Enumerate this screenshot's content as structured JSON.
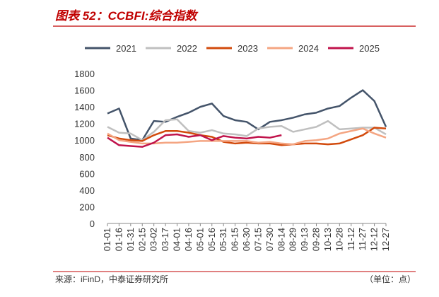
{
  "chart_data": {
    "type": "line",
    "title": "图表 52：CCBFI:综合指数",
    "source": "来源：iFinD，中泰证券研究所",
    "unit": "（单位：点）",
    "categories": [
      "01-01",
      "01-16",
      "01-31",
      "02-15",
      "03-02",
      "03-17",
      "04-01",
      "04-16",
      "05-01",
      "05-16",
      "05-31",
      "06-15",
      "06-30",
      "07-15",
      "07-30",
      "08-14",
      "08-29",
      "09-13",
      "09-28",
      "10-13",
      "10-28",
      "11-12",
      "11-27",
      "12-12",
      "12-27"
    ],
    "series": [
      {
        "name": "2021",
        "color": "#44546a",
        "values": [
          1320,
          1380,
          1020,
          1000,
          1230,
          1220,
          1280,
          1330,
          1400,
          1440,
          1290,
          1240,
          1220,
          1130,
          1220,
          1240,
          1270,
          1310,
          1330,
          1380,
          1410,
          1510,
          1600,
          1470,
          1160
        ]
      },
      {
        "name": "2022",
        "color": "#bfbfbf",
        "values": [
          1160,
          1090,
          1080,
          1000,
          1100,
          1240,
          1250,
          1110,
          1090,
          1120,
          1080,
          1070,
          1050,
          1140,
          1160,
          1170,
          1100,
          1130,
          1160,
          1230,
          1130,
          1140,
          1150,
          1150,
          1070
        ]
      },
      {
        "name": "2023",
        "color": "#d24a0c",
        "values": [
          1060,
          1020,
          1000,
          990,
          1060,
          1110,
          1110,
          1090,
          1060,
          1040,
          980,
          960,
          970,
          960,
          960,
          940,
          950,
          960,
          960,
          950,
          960,
          1010,
          1060,
          1150,
          1140
        ]
      },
      {
        "name": "2024",
        "color": "#f4a582",
        "values": [
          1080,
          1000,
          980,
          960,
          960,
          970,
          970,
          980,
          990,
          990,
          990,
          990,
          990,
          970,
          980,
          960,
          950,
          990,
          1000,
          1020,
          1080,
          1110,
          1140,
          1080,
          1030
        ]
      },
      {
        "name": "2025",
        "color": "#c0134b",
        "values": [
          1030,
          940,
          930,
          920,
          970,
          1060,
          1070,
          1040,
          1060,
          1000,
          1050,
          1030,
          1020,
          1040,
          1030,
          1060,
          null,
          null,
          null,
          null,
          null,
          null,
          null,
          null,
          null
        ]
      }
    ],
    "ylim": [
      0,
      1800
    ],
    "yticks": [
      0,
      200,
      400,
      600,
      800,
      1000,
      1200,
      1400,
      1600,
      1800
    ]
  }
}
